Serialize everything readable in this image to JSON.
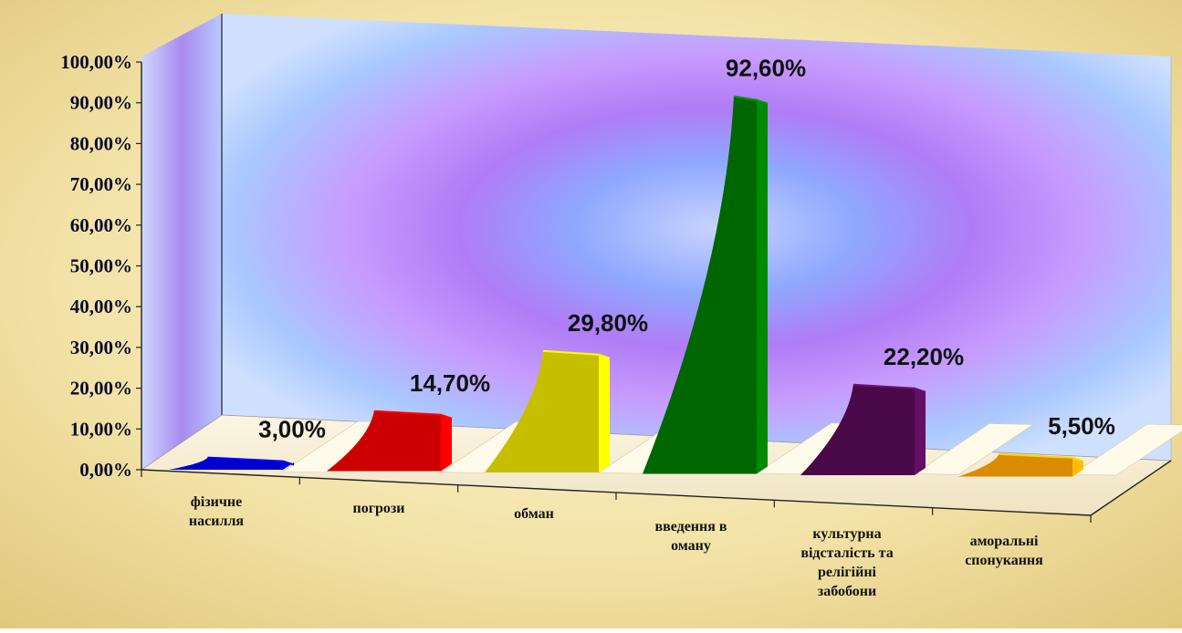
{
  "chart_data": {
    "type": "bar",
    "categories": [
      [
        "фізичне",
        "насилля"
      ],
      [
        "погрози"
      ],
      [
        "обман"
      ],
      [
        "введення в",
        "оману"
      ],
      [
        "культурна",
        "відсталість та",
        "релігійні",
        "забобони"
      ],
      [
        "аморальні",
        "спонукання"
      ]
    ],
    "values": [
      3.0,
      14.7,
      29.8,
      92.6,
      22.2,
      5.5
    ],
    "value_labels": [
      "3,00%",
      "14,70%",
      "29,80%",
      "92,60%",
      "22,20%",
      "5,50%"
    ],
    "colors": [
      "#0000cc",
      "#cc0000",
      "#c8be00",
      "#006600",
      "#4a0a4a",
      "#d98c00"
    ],
    "ylim": [
      0,
      100
    ],
    "ytick_labels": [
      "0,00%",
      "10,00%",
      "20,00%",
      "30,00%",
      "40,00%",
      "50,00%",
      "60,00%",
      "70,00%",
      "80,00%",
      "90,00%",
      "100,00%"
    ],
    "title": "",
    "xlabel": "",
    "ylabel": "",
    "grid": false,
    "legend": "none"
  }
}
